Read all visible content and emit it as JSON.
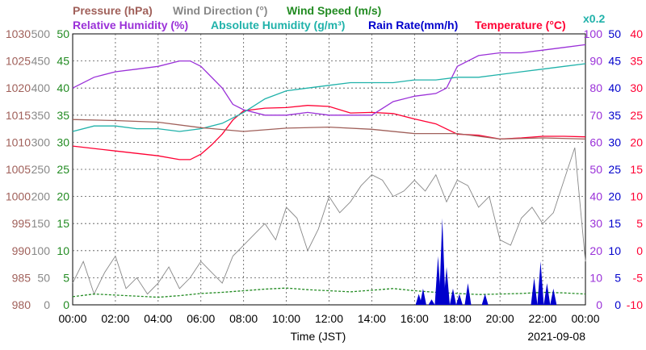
{
  "chart_data": {
    "type": "line",
    "date": "2021-09-08",
    "xlabel": "Time (JST)",
    "x_ticks": [
      "00:00",
      "02:00",
      "04:00",
      "06:00",
      "08:00",
      "10:00",
      "12:00",
      "14:00",
      "16:00",
      "18:00",
      "20:00",
      "22:00",
      "00:00"
    ],
    "legend": {
      "row1": [
        {
          "key": "pressure",
          "label": "Pressure (hPa)",
          "color": "#a0605a"
        },
        {
          "key": "wind_dir",
          "label": "Wind Direction (°)",
          "color": "#888888"
        },
        {
          "key": "wind_speed",
          "label": "Wind Speed (m/s)",
          "color": "#228b22"
        }
      ],
      "row2": [
        {
          "key": "rh",
          "label": "Relative Humidity (%)",
          "color": "#9a30d8"
        },
        {
          "key": "ah",
          "label": "Absolute Humidity (g/m³)",
          "color": "#20b2aa"
        },
        {
          "key": "rain",
          "label": "Rain Rate(mm/h)",
          "color": "#0000cc"
        },
        {
          "key": "temp",
          "label": "Temperature (°C)",
          "color": "#ff0033"
        }
      ],
      "ah_scale_note": "x0.2"
    },
    "axes": {
      "pressure": {
        "range": [
          980,
          1030
        ],
        "ticks": [
          "1030",
          "1025",
          "1020",
          "1015",
          "1010",
          "1005",
          "1000",
          "995",
          "990",
          "985",
          "980"
        ],
        "color": "#a0605a"
      },
      "wind_dir": {
        "range": [
          0,
          500
        ],
        "ticks": [
          "500",
          "450",
          "400",
          "350",
          "300",
          "250",
          "200",
          "150",
          "100",
          "50",
          "0"
        ],
        "color": "#888888"
      },
      "wind_speed": {
        "range": [
          0,
          50
        ],
        "ticks": [
          "50",
          "45",
          "40",
          "35",
          "30",
          "25",
          "20",
          "15",
          "10",
          "5",
          "0"
        ],
        "color": "#228b22"
      },
      "rh": {
        "range": [
          0,
          100
        ],
        "ticks": [
          "100",
          "90",
          "80",
          "70",
          "60",
          "50",
          "40",
          "30",
          "20",
          "10",
          "0"
        ],
        "color": "#9a30d8"
      },
      "rain": {
        "range": [
          0,
          50
        ],
        "ticks": [
          "50",
          "45",
          "40",
          "35",
          "30",
          "25",
          "20",
          "15",
          "10",
          "5",
          "0"
        ],
        "color": "#0000cc"
      },
      "temp": {
        "range": [
          -10,
          40
        ],
        "ticks": [
          "40",
          "35",
          "30",
          "25",
          "20",
          "15",
          "10",
          "5",
          "0",
          "-5",
          "-10"
        ],
        "color": "#ff0033"
      }
    },
    "series": [
      {
        "key": "temp",
        "name": "Temperature (°C)",
        "hours": [
          0,
          2,
          4,
          5,
          5.5,
          6,
          6.5,
          7,
          7.5,
          8,
          9,
          10,
          11,
          12,
          13,
          14,
          15,
          16,
          17,
          18,
          19,
          20,
          21,
          22,
          23,
          24
        ],
        "values": [
          19.3,
          18.4,
          17.5,
          16.8,
          16.8,
          17.8,
          19.5,
          21.5,
          24.1,
          25.8,
          26.3,
          26.4,
          26.8,
          26.6,
          25.4,
          25.5,
          25.3,
          24.3,
          23.4,
          21.5,
          21.3,
          20.6,
          20.8,
          21.1,
          21.1,
          21
        ]
      },
      {
        "key": "rh",
        "name": "Relative Humidity (%)",
        "hours": [
          0,
          1,
          2,
          3,
          4,
          5,
          5.5,
          6,
          7,
          7.5,
          8,
          9,
          10,
          11,
          12,
          13,
          14,
          15,
          16,
          17,
          17.5,
          18,
          19,
          20,
          21,
          22,
          23,
          24
        ],
        "values": [
          80,
          84,
          86,
          87,
          88,
          90,
          90,
          88,
          80,
          74,
          72,
          70,
          70,
          71,
          70,
          70,
          70,
          75,
          77,
          78,
          80,
          88,
          92,
          93,
          93,
          94,
          95,
          96
        ]
      },
      {
        "key": "ah",
        "name": "Absolute Humidity (g/m³)",
        "hours": [
          0,
          1,
          2,
          3,
          4,
          5,
          6,
          7,
          8,
          9,
          10,
          11,
          12,
          13,
          14,
          15,
          16,
          17,
          18,
          19,
          20,
          21,
          22,
          23,
          24
        ],
        "values": [
          64,
          66,
          66,
          65,
          65,
          64,
          65,
          67,
          71,
          76,
          79,
          80,
          81,
          82,
          82,
          82,
          83,
          83,
          84,
          84,
          85,
          86,
          87,
          88,
          89
        ]
      },
      {
        "key": "pressure",
        "name": "Pressure (hPa)",
        "hours": [
          0,
          2,
          4,
          6,
          8,
          10,
          12,
          14,
          16,
          18,
          20,
          22,
          24
        ],
        "values": [
          1014.2,
          1014,
          1013.7,
          1012.7,
          1012,
          1012.6,
          1012.8,
          1012.4,
          1011.6,
          1011.6,
          1010.6,
          1010.8,
          1010.6
        ]
      },
      {
        "key": "wind_dir",
        "name": "Wind Direction (°)",
        "hours": [
          0,
          0.5,
          1,
          1.5,
          2,
          2.5,
          3,
          3.5,
          4,
          4.5,
          5,
          5.5,
          6,
          6.5,
          7,
          7.5,
          8,
          8.5,
          9,
          9.5,
          10,
          10.5,
          11,
          11.5,
          12,
          12.5,
          13,
          13.5,
          14,
          14.5,
          15,
          15.5,
          16,
          16.5,
          17,
          17.5,
          18,
          18.5,
          19,
          19.5,
          20,
          20.5,
          21,
          21.5,
          22,
          22.5,
          23,
          23.5,
          24
        ],
        "values": [
          40,
          80,
          20,
          60,
          90,
          30,
          50,
          20,
          40,
          70,
          30,
          50,
          80,
          60,
          40,
          90,
          110,
          130,
          150,
          120,
          180,
          160,
          100,
          140,
          200,
          170,
          190,
          220,
          240,
          230,
          200,
          210,
          230,
          210,
          240,
          190,
          230,
          220,
          180,
          200,
          120,
          110,
          160,
          180,
          150,
          170,
          230,
          290,
          80
        ]
      },
      {
        "key": "wind_speed",
        "name": "Wind Speed (m/s)",
        "hours": [
          0,
          1,
          2,
          3,
          4,
          5,
          6,
          7,
          8,
          9,
          10,
          11,
          12,
          13,
          14,
          15,
          16,
          17,
          18,
          19,
          20,
          21,
          22,
          23,
          24
        ],
        "values": [
          1.5,
          2,
          1.8,
          1.6,
          1.4,
          1.7,
          2.1,
          2.3,
          2.6,
          2.9,
          3.1,
          2.8,
          2.6,
          2.4,
          2.7,
          3,
          2.6,
          2.3,
          2.1,
          1.9,
          2,
          2.1,
          2.3,
          2.2,
          2
        ]
      },
      {
        "key": "rain",
        "name": "Rain Rate(mm/h)",
        "hours": [
          16.2,
          16.4,
          16.8,
          17.1,
          17.3,
          17.5,
          17.8,
          18.1,
          18.5,
          19.3,
          21.6,
          21.9,
          22.2,
          22.5
        ],
        "values": [
          2,
          3,
          1,
          9,
          16,
          7,
          3,
          2,
          4,
          2,
          5,
          8,
          4,
          3
        ]
      }
    ]
  }
}
